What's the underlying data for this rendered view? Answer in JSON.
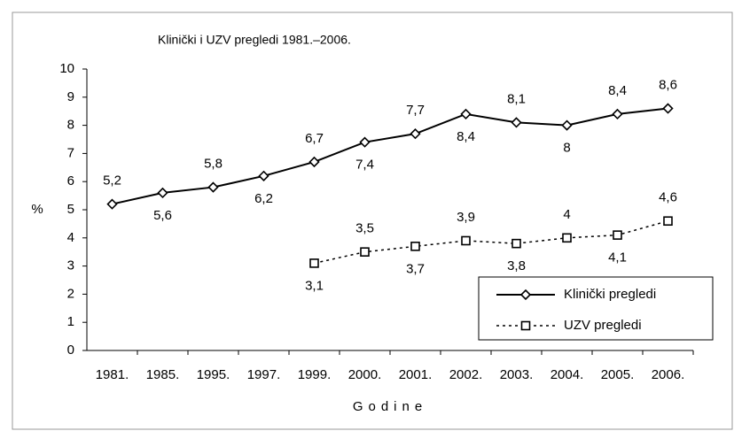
{
  "chart_data": {
    "type": "line",
    "title": "Klinički i UZV pregledi 1981.–2006.",
    "x_label": "Godine",
    "y_label": "%",
    "categories": [
      "1981.",
      "1985.",
      "1995.",
      "1997.",
      "1999.",
      "2000.",
      "2001.",
      "2002.",
      "2003.",
      "2004.",
      "2005.",
      "2006."
    ],
    "series": [
      {
        "name": "Klinički pregledi",
        "color": "#000000",
        "marker": "diamond",
        "line_style": "solid",
        "values": [
          5.2,
          5.6,
          5.8,
          6.2,
          6.7,
          7.4,
          7.7,
          8.4,
          8.1,
          8,
          8.4,
          8.6
        ],
        "value_labels": [
          "5,2",
          "5,6",
          "5,8",
          "6,2",
          "6,7",
          "7,4",
          "7,7",
          "8,4",
          "8,1",
          "8",
          "8,4",
          "8,6"
        ]
      },
      {
        "name": "UZV pregledi",
        "color": "#000000",
        "marker": "square",
        "line_style": "dotted",
        "values": [
          null,
          null,
          null,
          null,
          3.1,
          3.5,
          3.7,
          3.9,
          3.8,
          4,
          4.1,
          4.6
        ],
        "value_labels": [
          null,
          null,
          null,
          null,
          "3,1",
          "3,5",
          "3,7",
          "3,9",
          "3,8",
          "4",
          "4,1",
          "4,6"
        ]
      }
    ],
    "ylim": [
      0,
      10
    ],
    "yticks": [
      0,
      1,
      2,
      3,
      4,
      5,
      6,
      7,
      8,
      9,
      10
    ],
    "grid": false,
    "legend": "lower right"
  }
}
